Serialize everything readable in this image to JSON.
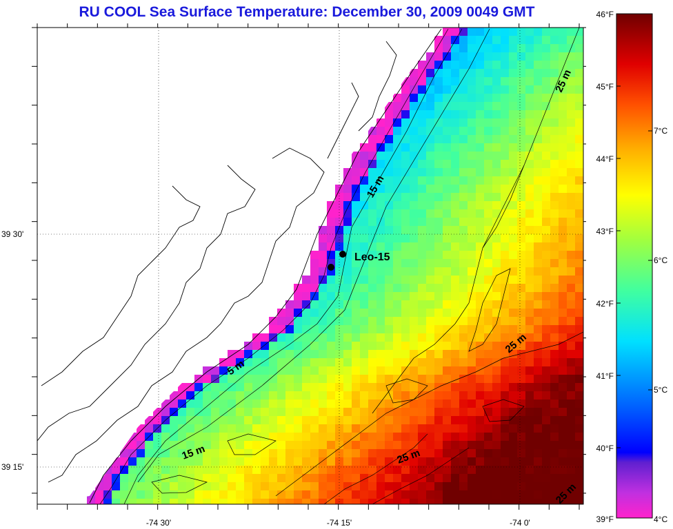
{
  "title": "RU COOL  Sea Surface Temperature:  December 30, 2009 0049 GMT",
  "map": {
    "longitude_labels": [
      "-74 30'",
      "-74 15'",
      "-74 0'"
    ],
    "latitude_labels": [
      "39 30'",
      "39 15'"
    ],
    "isobath_labels": [
      "15 m",
      "5 m",
      "15 m",
      "25 m",
      "25 m",
      "25 m",
      "25 m"
    ],
    "station_label": "Leo-15",
    "land_color": "#ffffff",
    "missing_color": "#ffffff"
  },
  "colorbar": {
    "fahrenheit_labels": [
      "46°F",
      "45°F",
      "44°F",
      "43°F",
      "42°F",
      "41°F",
      "40°F",
      "39°F"
    ],
    "celsius_labels": [
      "7°C",
      "6°C",
      "5°C",
      "4°C"
    ],
    "colors": [
      "#ff00ff",
      "#7b22d6",
      "#0000ff",
      "#0080ff",
      "#00ffff",
      "#40ffa0",
      "#a0ff40",
      "#ffff00",
      "#ffa000",
      "#ff5000",
      "#ff0000",
      "#800000"
    ],
    "range_f": [
      39,
      46
    ],
    "range_c": [
      4,
      7.8
    ]
  }
}
